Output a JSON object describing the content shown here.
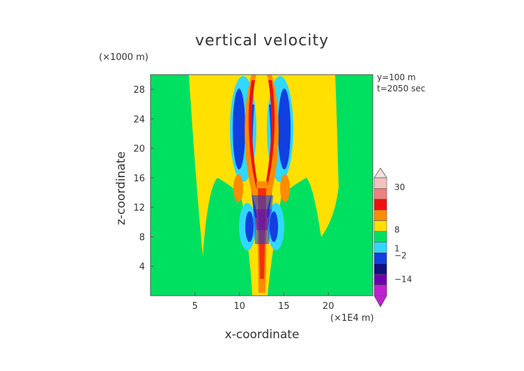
{
  "chart_data": {
    "type": "heatmap",
    "title": "vertical velocity",
    "xlabel": "x-coordinate",
    "ylabel": "z-coordinate",
    "x_unit": "(×1E4 m)",
    "y_unit": "(×1000 m)",
    "annotations": [
      "y=100 m",
      "t=2050 sec"
    ],
    "xlim": [
      0,
      25
    ],
    "ylim": [
      0,
      30
    ],
    "xticks": [
      5,
      10,
      15,
      20
    ],
    "yticks": [
      4,
      8,
      12,
      16,
      20,
      24,
      28
    ],
    "field": "symmetric gravity-wave pattern centred near x=12.5: positive (orange/red) and negative (blue) lobes fanning upward from z≈3 to z≈30, weakly positive (yellow) plume between x≈4 and x≈21, near-zero (green) background",
    "colorbar": {
      "labels": [
        "30",
        "8",
        "1",
        "-2",
        "-14"
      ],
      "colors": [
        "#f4c0c0",
        "#f08080",
        "#ee1010",
        "#ff8c00",
        "#ffe000",
        "#00e060",
        "#30d8ff",
        "#1040e0",
        "#101080",
        "#6a00b0",
        "#c020d0"
      ]
    }
  }
}
